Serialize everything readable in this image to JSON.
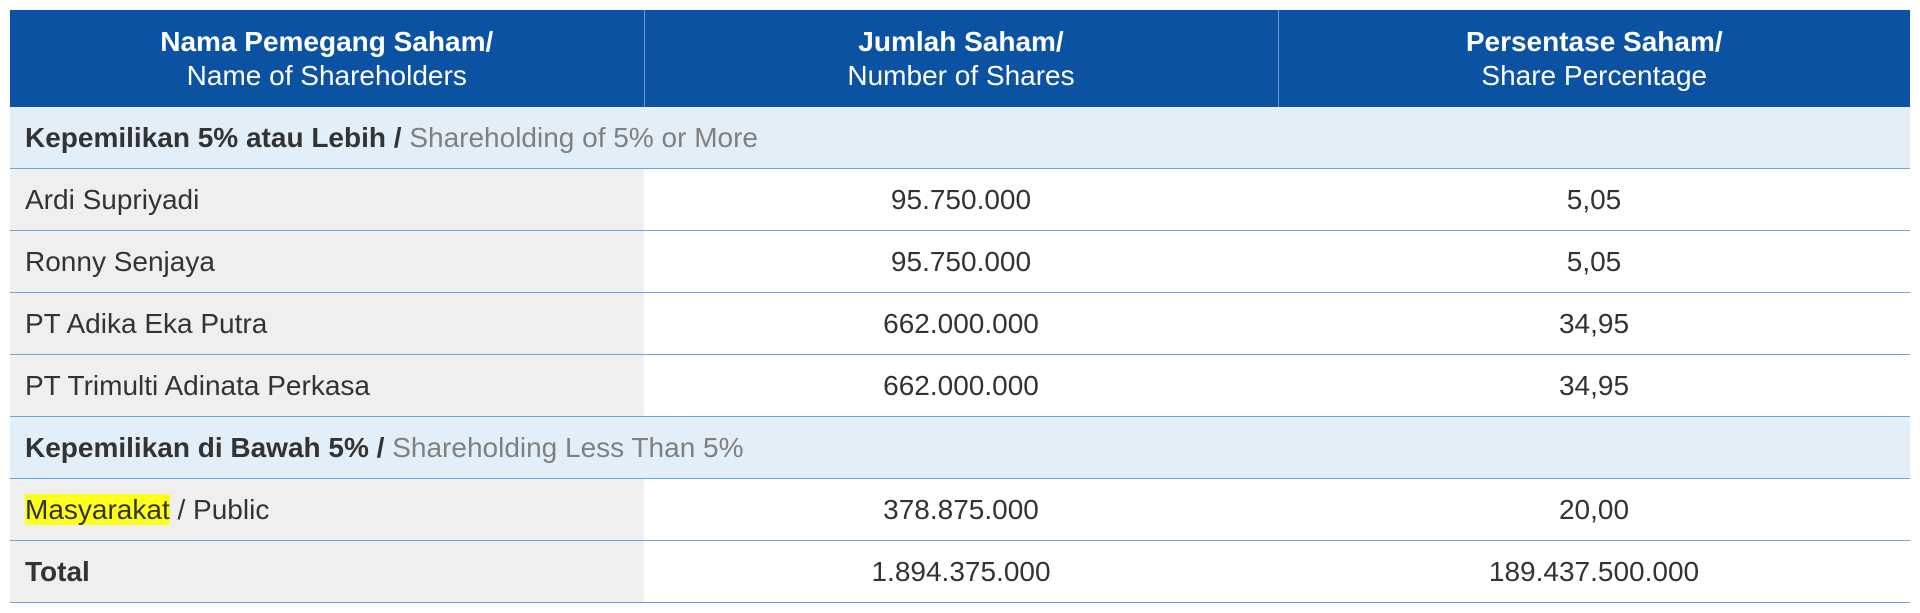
{
  "header": {
    "col1_id": "Nama Pemegang Saham/",
    "col1_en": "Name of Shareholders",
    "col2_id": "Jumlah Saham/",
    "col2_en": "Number of Shares",
    "col3_id": "Persentase Saham/",
    "col3_en": "Share Percentage"
  },
  "section1": {
    "label_id": "Kepemilikan 5% atau Lebih",
    "separator": " / ",
    "label_en": "Shareholding of 5% or More"
  },
  "rows1": [
    {
      "name": "Ardi Supriyadi",
      "shares": "95.750.000",
      "pct": "5,05"
    },
    {
      "name": "Ronny Senjaya",
      "shares": "95.750.000",
      "pct": "5,05"
    },
    {
      "name": "PT Adika Eka Putra",
      "shares": "662.000.000",
      "pct": "34,95"
    },
    {
      "name": "PT Trimulti Adinata Perkasa",
      "shares": "662.000.000",
      "pct": "34,95"
    }
  ],
  "section2": {
    "label_id": "Kepemilikan di Bawah 5%",
    "separator": " / ",
    "label_en": "Shareholding Less Than 5%"
  },
  "rows2": [
    {
      "name_highlight": "Masyarakat",
      "name_rest": " / Public",
      "shares": "378.875.000",
      "pct": "20,00"
    }
  ],
  "total": {
    "label": "Total",
    "shares": "1.894.375.000",
    "pct": "189.437.500.000"
  },
  "colors": {
    "header_bg": "#0b52a3",
    "section_bg": "#e3eff8",
    "name_col_bg": "#efeff0",
    "row_border": "#6aa6da",
    "highlight": "#ffff1e"
  }
}
